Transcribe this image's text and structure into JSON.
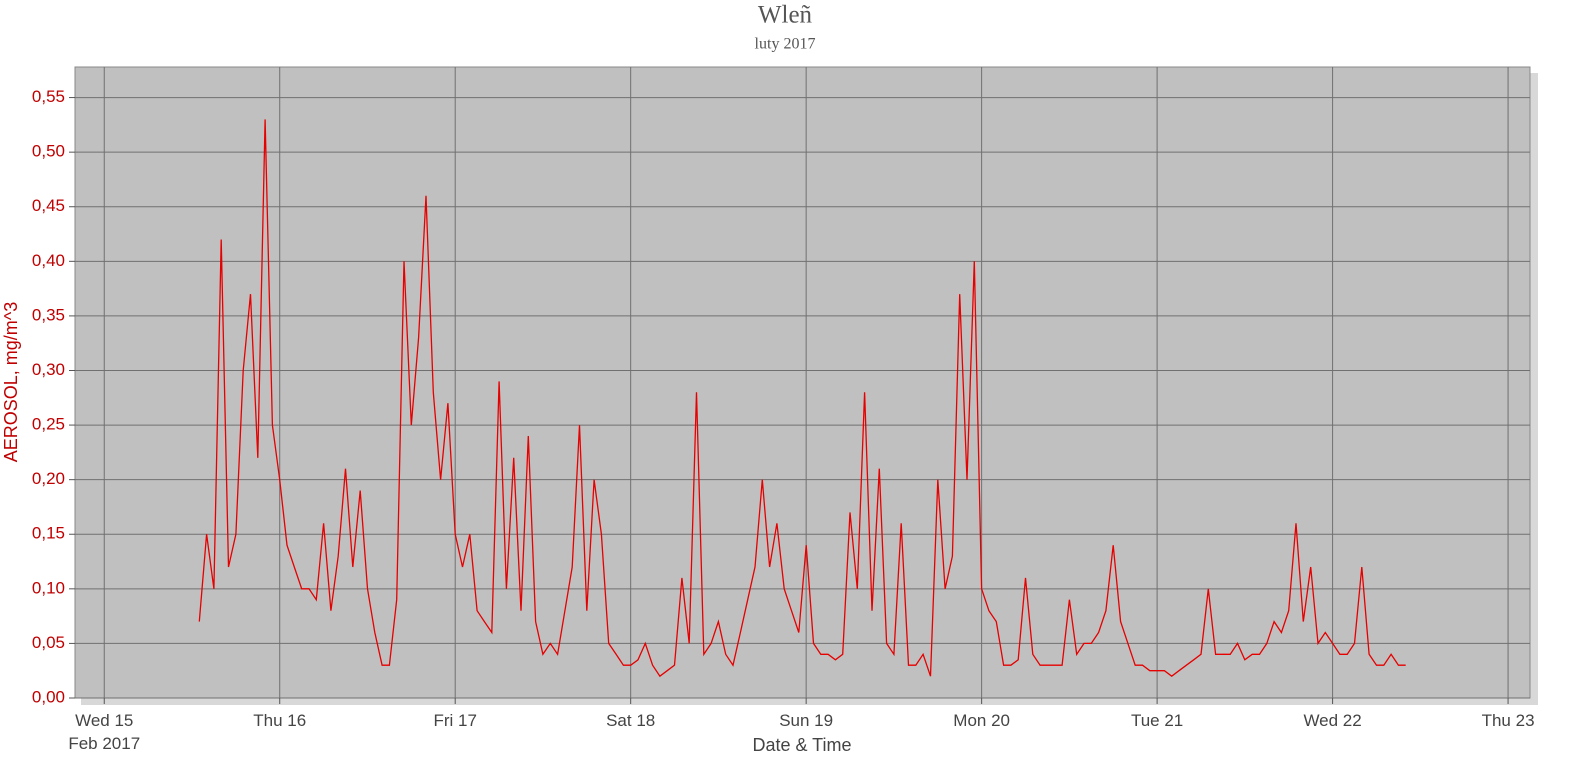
{
  "chart_data": {
    "type": "line",
    "title": "Wleñ",
    "subtitle": "luty 2017",
    "x_label": "Date & Time",
    "y_label": "AEROSOL, mg/m^3",
    "color": "#e60000",
    "grid": true,
    "xlim": [
      "2017-02-14T20:00",
      "2017-02-23T03:00"
    ],
    "xticks": [
      {
        "value": "2017-02-15T00:00",
        "label": "Wed 15\nFeb 2017"
      },
      {
        "value": "2017-02-16T00:00",
        "label": "Thu 16"
      },
      {
        "value": "2017-02-17T00:00",
        "label": "Fri 17"
      },
      {
        "value": "2017-02-18T00:00",
        "label": "Sat 18"
      },
      {
        "value": "2017-02-19T00:00",
        "label": "Sun 19"
      },
      {
        "value": "2017-02-20T00:00",
        "label": "Mon 20"
      },
      {
        "value": "2017-02-21T00:00",
        "label": "Tue 21"
      },
      {
        "value": "2017-02-22T00:00",
        "label": "Wed 22"
      },
      {
        "value": "2017-02-23T00:00",
        "label": "Thu 23"
      }
    ],
    "ylim": [
      0,
      0.578
    ],
    "yticks": [
      {
        "value": 0,
        "label": "0,00"
      },
      {
        "value": 0.05,
        "label": "0,05"
      },
      {
        "value": 0.1,
        "label": "0,10"
      },
      {
        "value": 0.15,
        "label": "0,15"
      },
      {
        "value": 0.2,
        "label": "0,20"
      },
      {
        "value": 0.25,
        "label": "0,25"
      },
      {
        "value": 0.3,
        "label": "0,30"
      },
      {
        "value": 0.35,
        "label": "0,35"
      },
      {
        "value": 0.4,
        "label": "0,40"
      },
      {
        "value": 0.45,
        "label": "0,45"
      },
      {
        "value": 0.5,
        "label": "0,50"
      },
      {
        "value": 0.55,
        "label": "0,55"
      }
    ],
    "x": [
      "2017-02-15T13:00",
      "2017-02-15T14:00",
      "2017-02-15T15:00",
      "2017-02-15T16:00",
      "2017-02-15T17:00",
      "2017-02-15T18:00",
      "2017-02-15T19:00",
      "2017-02-15T20:00",
      "2017-02-15T21:00",
      "2017-02-15T22:00",
      "2017-02-15T23:00",
      "2017-02-16T00:00",
      "2017-02-16T01:00",
      "2017-02-16T02:00",
      "2017-02-16T03:00",
      "2017-02-16T04:00",
      "2017-02-16T05:00",
      "2017-02-16T06:00",
      "2017-02-16T07:00",
      "2017-02-16T08:00",
      "2017-02-16T09:00",
      "2017-02-16T10:00",
      "2017-02-16T11:00",
      "2017-02-16T12:00",
      "2017-02-16T13:00",
      "2017-02-16T14:00",
      "2017-02-16T15:00",
      "2017-02-16T16:00",
      "2017-02-16T17:00",
      "2017-02-16T18:00",
      "2017-02-16T19:00",
      "2017-02-16T20:00",
      "2017-02-16T21:00",
      "2017-02-16T22:00",
      "2017-02-16T23:00",
      "2017-02-17T00:00",
      "2017-02-17T01:00",
      "2017-02-17T02:00",
      "2017-02-17T03:00",
      "2017-02-17T04:00",
      "2017-02-17T05:00",
      "2017-02-17T06:00",
      "2017-02-17T07:00",
      "2017-02-17T08:00",
      "2017-02-17T09:00",
      "2017-02-17T10:00",
      "2017-02-17T11:00",
      "2017-02-17T12:00",
      "2017-02-17T13:00",
      "2017-02-17T14:00",
      "2017-02-17T15:00",
      "2017-02-17T16:00",
      "2017-02-17T17:00",
      "2017-02-17T18:00",
      "2017-02-17T19:00",
      "2017-02-17T20:00",
      "2017-02-17T21:00",
      "2017-02-17T22:00",
      "2017-02-17T23:00",
      "2017-02-18T00:00",
      "2017-02-18T01:00",
      "2017-02-18T02:00",
      "2017-02-18T03:00",
      "2017-02-18T04:00",
      "2017-02-18T05:00",
      "2017-02-18T06:00",
      "2017-02-18T07:00",
      "2017-02-18T08:00",
      "2017-02-18T09:00",
      "2017-02-18T10:00",
      "2017-02-18T11:00",
      "2017-02-18T12:00",
      "2017-02-18T13:00",
      "2017-02-18T14:00",
      "2017-02-18T15:00",
      "2017-02-18T16:00",
      "2017-02-18T17:00",
      "2017-02-18T18:00",
      "2017-02-18T19:00",
      "2017-02-18T20:00",
      "2017-02-18T21:00",
      "2017-02-18T22:00",
      "2017-02-18T23:00",
      "2017-02-19T00:00",
      "2017-02-19T01:00",
      "2017-02-19T02:00",
      "2017-02-19T03:00",
      "2017-02-19T04:00",
      "2017-02-19T05:00",
      "2017-02-19T06:00",
      "2017-02-19T07:00",
      "2017-02-19T08:00",
      "2017-02-19T09:00",
      "2017-02-19T10:00",
      "2017-02-19T11:00",
      "2017-02-19T12:00",
      "2017-02-19T13:00",
      "2017-02-19T14:00",
      "2017-02-19T15:00",
      "2017-02-19T16:00",
      "2017-02-19T17:00",
      "2017-02-19T18:00",
      "2017-02-19T19:00",
      "2017-02-19T20:00",
      "2017-02-19T21:00",
      "2017-02-19T22:00",
      "2017-02-19T23:00",
      "2017-02-20T00:00",
      "2017-02-20T01:00",
      "2017-02-20T02:00",
      "2017-02-20T03:00",
      "2017-02-20T04:00",
      "2017-02-20T05:00",
      "2017-02-20T06:00",
      "2017-02-20T07:00",
      "2017-02-20T08:00",
      "2017-02-20T09:00",
      "2017-02-20T10:00",
      "2017-02-20T11:00",
      "2017-02-20T12:00",
      "2017-02-20T13:00",
      "2017-02-20T14:00",
      "2017-02-20T15:00",
      "2017-02-20T16:00",
      "2017-02-20T17:00",
      "2017-02-20T18:00",
      "2017-02-20T19:00",
      "2017-02-20T20:00",
      "2017-02-20T21:00",
      "2017-02-20T22:00",
      "2017-02-20T23:00",
      "2017-02-21T00:00",
      "2017-02-21T01:00",
      "2017-02-21T02:00",
      "2017-02-21T03:00",
      "2017-02-21T04:00",
      "2017-02-21T05:00",
      "2017-02-21T06:00",
      "2017-02-21T07:00",
      "2017-02-21T08:00",
      "2017-02-21T09:00",
      "2017-02-21T10:00",
      "2017-02-21T11:00",
      "2017-02-21T12:00",
      "2017-02-21T13:00",
      "2017-02-21T14:00",
      "2017-02-21T15:00",
      "2017-02-21T16:00",
      "2017-02-21T17:00",
      "2017-02-21T18:00",
      "2017-02-21T19:00",
      "2017-02-21T20:00",
      "2017-02-21T21:00",
      "2017-02-21T22:00",
      "2017-02-21T23:00",
      "2017-02-22T00:00",
      "2017-02-22T01:00",
      "2017-02-22T02:00",
      "2017-02-22T03:00",
      "2017-02-22T04:00",
      "2017-02-22T05:00",
      "2017-02-22T06:00",
      "2017-02-22T07:00",
      "2017-02-22T08:00",
      "2017-02-22T09:00",
      "2017-02-22T10:00"
    ],
    "values": [
      0.07,
      0.15,
      0.1,
      0.42,
      0.12,
      0.15,
      0.3,
      0.37,
      0.22,
      0.53,
      0.25,
      0.2,
      0.14,
      0.12,
      0.1,
      0.1,
      0.09,
      0.16,
      0.08,
      0.13,
      0.21,
      0.12,
      0.19,
      0.1,
      0.06,
      0.03,
      0.03,
      0.09,
      0.4,
      0.25,
      0.33,
      0.46,
      0.28,
      0.2,
      0.27,
      0.15,
      0.12,
      0.15,
      0.08,
      0.07,
      0.06,
      0.29,
      0.1,
      0.22,
      0.08,
      0.24,
      0.07,
      0.04,
      0.05,
      0.04,
      0.08,
      0.12,
      0.25,
      0.08,
      0.2,
      0.15,
      0.05,
      0.04,
      0.03,
      0.03,
      0.035,
      0.05,
      0.03,
      0.02,
      0.025,
      0.03,
      0.11,
      0.05,
      0.28,
      0.04,
      0.05,
      0.07,
      0.04,
      0.03,
      0.06,
      0.09,
      0.12,
      0.2,
      0.12,
      0.16,
      0.1,
      0.08,
      0.06,
      0.14,
      0.05,
      0.04,
      0.04,
      0.035,
      0.04,
      0.17,
      0.1,
      0.28,
      0.08,
      0.21,
      0.05,
      0.04,
      0.16,
      0.03,
      0.03,
      0.04,
      0.02,
      0.2,
      0.1,
      0.13,
      0.37,
      0.2,
      0.4,
      0.1,
      0.08,
      0.07,
      0.03,
      0.03,
      0.035,
      0.11,
      0.04,
      0.03,
      0.03,
      0.03,
      0.03,
      0.09,
      0.04,
      0.05,
      0.05,
      0.06,
      0.08,
      0.14,
      0.07,
      0.05,
      0.03,
      0.03,
      0.025,
      0.025,
      0.025,
      0.02,
      0.025,
      0.03,
      0.035,
      0.04,
      0.1,
      0.04,
      0.04,
      0.04,
      0.05,
      0.035,
      0.04,
      0.04,
      0.05,
      0.07,
      0.06,
      0.08,
      0.16,
      0.07,
      0.12,
      0.05,
      0.06,
      0.05,
      0.04,
      0.04,
      0.05,
      0.12,
      0.04,
      0.03,
      0.03,
      0.04,
      0.03,
      0.03
    ]
  }
}
